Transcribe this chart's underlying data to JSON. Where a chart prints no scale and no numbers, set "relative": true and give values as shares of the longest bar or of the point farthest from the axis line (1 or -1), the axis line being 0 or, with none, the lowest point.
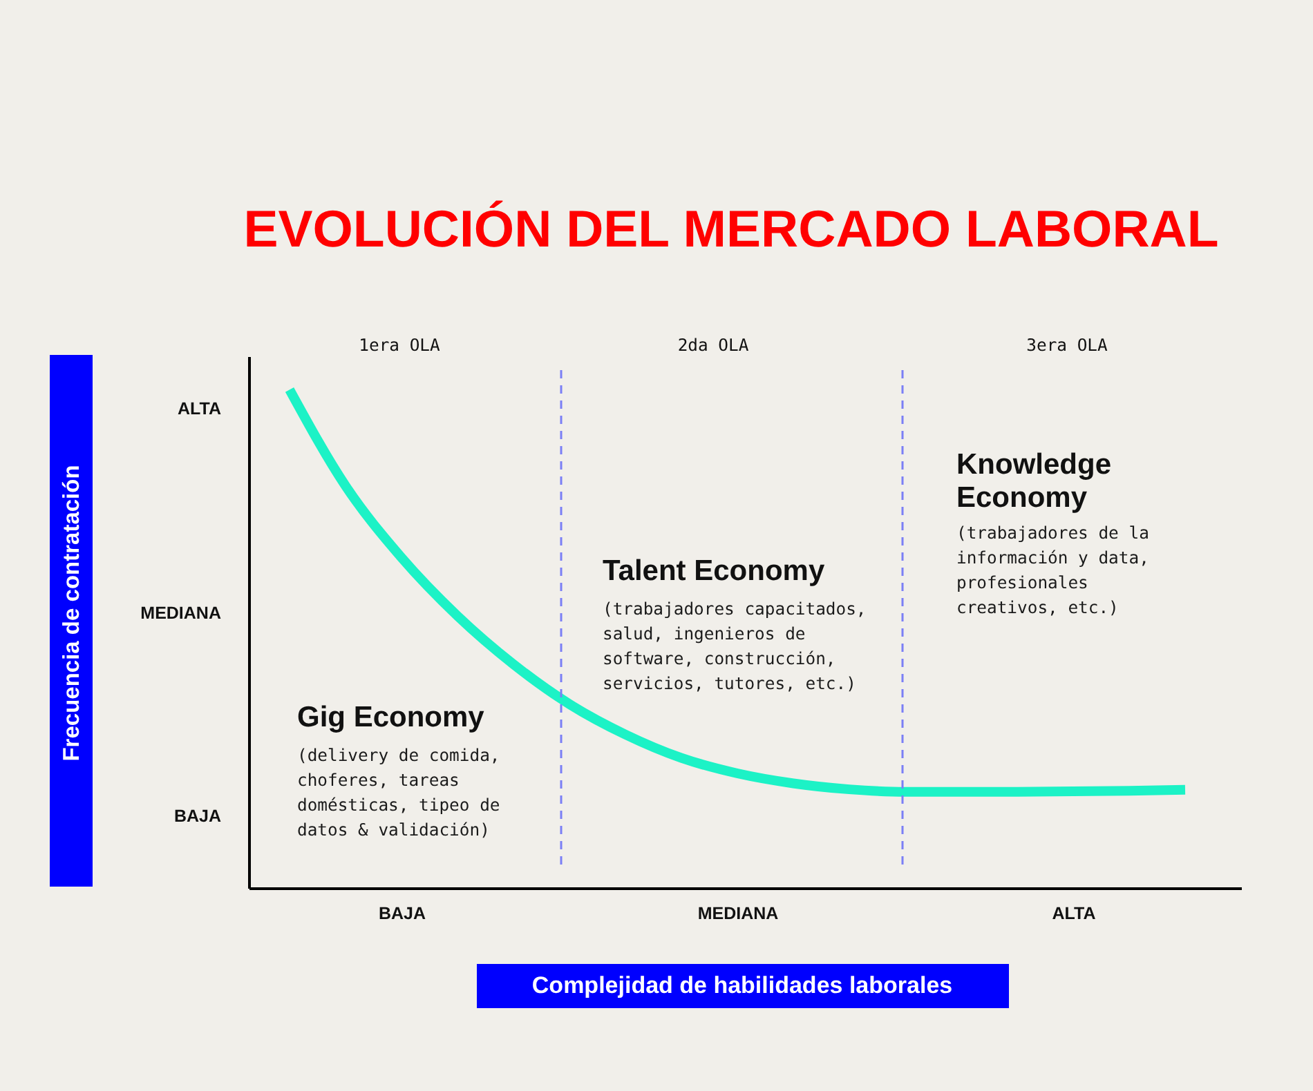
{
  "chart_data": {
    "type": "line",
    "title": "EVOLUCIÓN DEL MERCADO LABORAL",
    "xlabel": "Complejidad de habilidades laborales",
    "relative": true,
    "categories": [
      null,
      null,
      "BAJA",
      null,
      null,
      null,
      null,
      null,
      "MEDIANA",
      null,
      null,
      null,
      null,
      null,
      "ALTA",
      null,
      null
    ],
    "values": [
      1,
      0.807,
      0.663,
      0.546,
      0.449,
      0.369,
      0.308,
      0.261,
      0.23,
      0.21,
      0.198,
      0.193,
      0.193,
      0.193,
      0.194,
      0.195,
      0.197
    ],
    "color": "#1cf2c6",
    "line_style": "solid",
    "annotations": [
      "Frecuencia de contratación",
      "ALTA",
      "MEDIANA",
      "BAJA",
      "1era OLA",
      "2da OLA",
      "3era OLA",
      "Gig Economy",
      "(delivery de comida,\nchoferes, tareas\ndomésticas, tipeo de\ndatos & validación)",
      "Talent Economy",
      "(trabajadores capacitados,\nsalud, ingenieros de\nsoftware, construcción,\nservicios, tutores, etc.)",
      "Knowledge\nEconomy",
      "(trabajadores de la\ninformación y data,\nprofesionales\ncreativos, etc.)"
    ]
  }
}
